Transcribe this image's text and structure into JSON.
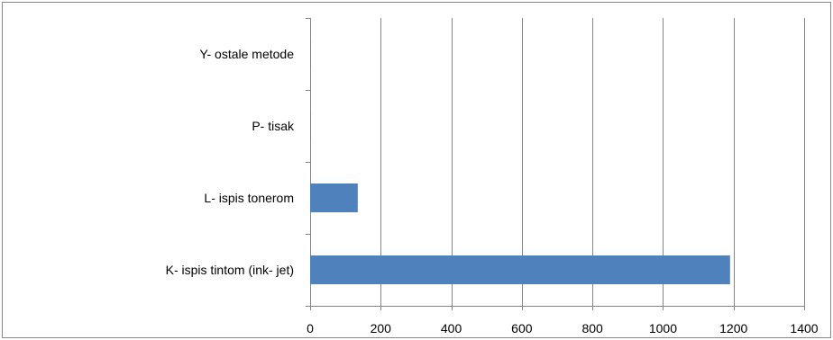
{
  "chart_data": {
    "type": "bar",
    "orientation": "horizontal",
    "categories": [
      "K- ispis tintom (ink- jet)",
      "L- ispis tonerom",
      "P- tisak",
      "Y- ostale metode"
    ],
    "values": [
      1190,
      135,
      1,
      1
    ],
    "xlim": [
      0,
      1400
    ],
    "x_ticks": [
      "0",
      "200",
      "400",
      "600",
      "800",
      "1000",
      "1200",
      "1400"
    ],
    "grid": "vertical major gridlines",
    "legend": "none",
    "title": "",
    "xlabel": "",
    "ylabel": "",
    "colors": {
      "bar": "#4f81bd",
      "grid": "#868686",
      "axis": "#868686",
      "frame": "#878787"
    }
  }
}
